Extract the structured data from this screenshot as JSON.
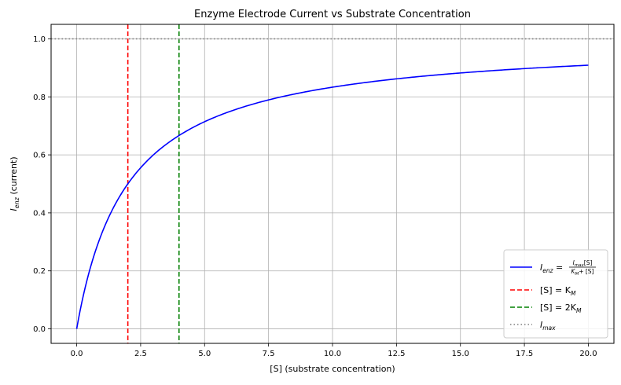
{
  "chart_data": {
    "type": "line",
    "title": "Enzyme Electrode Current vs Substrate Concentration",
    "xlabel": "[S] (substrate concentration)",
    "ylabel": {
      "main": "I",
      "sub": "enz",
      "rest": " (current)"
    },
    "xlim": [
      -1.0,
      21.0
    ],
    "ylim": [
      -0.05,
      1.05
    ],
    "xticks": [
      0.0,
      2.5,
      5.0,
      7.5,
      10.0,
      12.5,
      15.0,
      17.5,
      20.0
    ],
    "xtick_labels": [
      "0.0",
      "2.5",
      "5.0",
      "7.5",
      "10.0",
      "12.5",
      "15.0",
      "17.5",
      "20.0"
    ],
    "yticks": [
      0.0,
      0.2,
      0.4,
      0.6,
      0.8,
      1.0
    ],
    "ytick_labels": [
      "0.0",
      "0.2",
      "0.4",
      "0.6",
      "0.8",
      "1.0"
    ],
    "grid": true,
    "legend_position": "lower-right",
    "model": {
      "Imax": 1.0,
      "Km": 2.0,
      "x_start": 0.0,
      "x_end": 20.0
    },
    "series": [
      {
        "name": "I_enz = I_max[S] / (K_M + [S])",
        "color": "#0000ff",
        "style": "solid",
        "x": [
          0,
          0.5,
          1,
          1.5,
          2,
          3,
          4,
          5,
          6,
          8,
          10,
          12.5,
          15,
          17.5,
          20
        ],
        "y": [
          0.0,
          0.2,
          0.333,
          0.429,
          0.5,
          0.6,
          0.667,
          0.714,
          0.75,
          0.8,
          0.833,
          0.862,
          0.882,
          0.897,
          0.909
        ]
      }
    ],
    "reference_lines": [
      {
        "orientation": "vertical",
        "value": 2.0,
        "color": "#ff0000",
        "style": "dashed",
        "label": "[S] = K_M"
      },
      {
        "orientation": "vertical",
        "value": 4.0,
        "color": "#008000",
        "style": "dashed",
        "label": "[S] = 2K_M"
      },
      {
        "orientation": "horizontal",
        "value": 1.0,
        "color": "#808080",
        "style": "dotted",
        "label": "I_max"
      }
    ]
  },
  "legend": [
    {
      "kind": "curve",
      "color": "#0000ff",
      "dash": "",
      "main": "I",
      "sub": "enz",
      "num_main": "I",
      "num_sub": "max",
      "num_rest": "[S]",
      "den_main": "K",
      "den_sub": "M",
      "den_rest": "+ [S]"
    },
    {
      "kind": "text",
      "color": "#ff0000",
      "dash": "6 3",
      "pre": "[S] = K",
      "sub": "M"
    },
    {
      "kind": "text",
      "color": "#008000",
      "dash": "6 3",
      "pre": "[S] = 2K",
      "sub": "M"
    },
    {
      "kind": "text",
      "color": "#808080",
      "dash": "1.5 3",
      "pre": "I",
      "sub": "max"
    }
  ]
}
